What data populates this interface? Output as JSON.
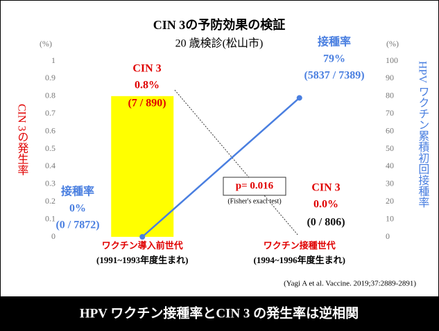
{
  "chart_data": {
    "type": "bar_line",
    "title": "CIN 3の予防効果の検証",
    "subtitle": "20 歳検診(松山市)",
    "y_unit": "(%)",
    "y2_unit": "(%)",
    "ylabel": "CIN 3の発生率",
    "y2label": "HPV ワクチン累積初回接種率",
    "categories": [
      "ワクチン導入前世代",
      "ワクチン接種世代"
    ],
    "category_sublabels": [
      "(1991~1993年度生まれ)",
      "(1994~1996年度生まれ)"
    ],
    "series": [
      {
        "name": "CIN 3",
        "type": "bar",
        "color": "#ffff00",
        "values": [
          0.8,
          0.0
        ],
        "value_labels": [
          "0.8%",
          "0.0%"
        ],
        "count_labels": [
          "(7 / 890)",
          "(0 / 806)"
        ]
      },
      {
        "name": "接種率",
        "type": "line",
        "axis": "y2",
        "color": "#4a7fe0",
        "values": [
          0,
          79
        ],
        "value_labels": [
          "0%",
          "79%"
        ],
        "count_labels": [
          "(0 / 7872)",
          "(5837 / 7389)"
        ]
      }
    ],
    "ylim": [
      0,
      1
    ],
    "yticks": [
      0,
      0.1,
      0.2,
      0.3,
      0.4,
      0.5,
      0.6,
      0.7,
      0.8,
      0.9,
      1
    ],
    "y2lim": [
      0,
      100
    ],
    "y2ticks": [
      0,
      10,
      20,
      30,
      40,
      50,
      60,
      70,
      80,
      90,
      100
    ],
    "p_value": "p= 0.016",
    "test_name": "(Fisher's exact test)",
    "citation": "(Yagi A et al. Vaccine. 2019;37:2889-2891)",
    "conclusion": "HPV ワクチン接種率とCIN 3 の発生率は逆相関"
  }
}
